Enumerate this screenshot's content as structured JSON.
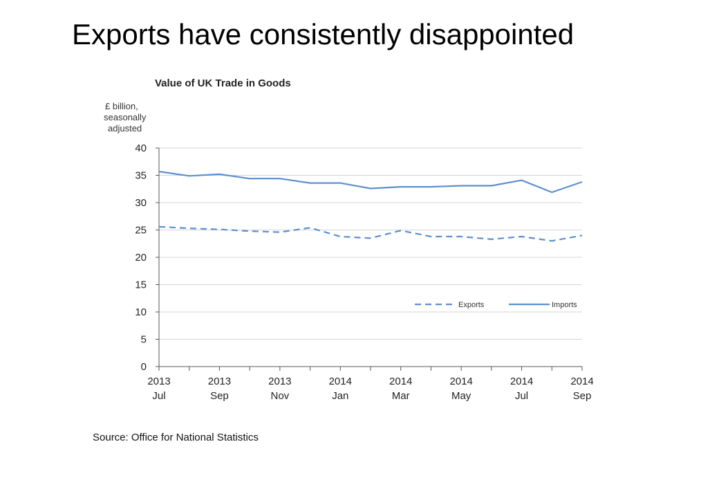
{
  "slide": {
    "title": "Exports have consistently disappointed"
  },
  "chart_data": {
    "type": "line",
    "title": "Value of UK Trade in Goods",
    "ylabel_lines": [
      "£ billion,",
      "seasonally",
      "adjusted"
    ],
    "ylim": [
      0,
      40
    ],
    "yticks": [
      0,
      5,
      10,
      15,
      20,
      25,
      30,
      35,
      40
    ],
    "grid": "horizontal",
    "x": [
      "2013 Jul",
      "2013 Aug",
      "2013 Sep",
      "2013 Oct",
      "2013 Nov",
      "2013 Dec",
      "2014 Jan",
      "2014 Feb",
      "2014 Mar",
      "2014 Apr",
      "2014 May",
      "2014 Jun",
      "2014 Jul",
      "2014 Aug",
      "2014 Sep"
    ],
    "xtick_labels": [
      {
        "year": "2013",
        "month": "Jul"
      },
      {
        "year": "2013",
        "month": "Sep"
      },
      {
        "year": "2013",
        "month": "Nov"
      },
      {
        "year": "2014",
        "month": "Jan"
      },
      {
        "year": "2014",
        "month": "Mar"
      },
      {
        "year": "2014",
        "month": "May"
      },
      {
        "year": "2014",
        "month": "Jul"
      },
      {
        "year": "2014",
        "month": "Sep"
      }
    ],
    "series": [
      {
        "name": "Exports",
        "style": "dashed",
        "color": "#5b8fd0",
        "values": [
          25.6,
          25.3,
          25.1,
          24.8,
          24.6,
          25.4,
          23.8,
          23.5,
          24.9,
          23.8,
          23.8,
          23.3,
          23.8,
          23.0,
          24.0
        ]
      },
      {
        "name": "Imports",
        "style": "solid",
        "color": "#5b8fd0",
        "values": [
          35.7,
          34.9,
          35.2,
          34.4,
          34.4,
          33.6,
          33.6,
          32.6,
          32.9,
          32.9,
          33.1,
          33.1,
          34.1,
          31.9,
          33.8
        ]
      }
    ],
    "legend": "bottom-right",
    "source": "Source: Office for National Statistics"
  }
}
